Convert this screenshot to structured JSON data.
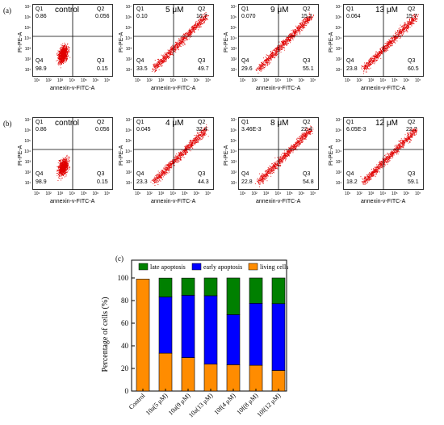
{
  "row_labels": [
    "(a)",
    "(b)",
    "(c)"
  ],
  "flow": {
    "x_axis_label": "annexin-v-FITC-A",
    "y_axis_label": "PI-PE-A",
    "x_ticks": [
      "10¹",
      "10²",
      "10³",
      "10⁴",
      "10⁵",
      "10⁶",
      "10⁷"
    ],
    "y_ticks": [
      "10⁷",
      "10⁶",
      "10⁵",
      "10⁴",
      "10³",
      "10²",
      "10¹"
    ],
    "quadrant_names": [
      "Q1",
      "Q2",
      "Q4",
      "Q3"
    ],
    "rows": [
      [
        {
          "condition": "control",
          "q1": "0.86",
          "q2": "0.056",
          "q4": "98.9",
          "q3": "0.15"
        },
        {
          "condition": "5 μM",
          "q1": "0.10",
          "q2": "16.7",
          "q4": "33.5",
          "q3": "49.7"
        },
        {
          "condition": "9 μM",
          "q1": "0.070",
          "q2": "15.2",
          "q4": "29.6",
          "q3": "55.1"
        },
        {
          "condition": "13 μM",
          "q1": "0.064",
          "q2": "15.7",
          "q4": "23.8",
          "q3": "60.5"
        }
      ],
      [
        {
          "condition": "control",
          "q1": "0.86",
          "q2": "0.056",
          "q4": "98.9",
          "q3": "0.15"
        },
        {
          "condition": "4 μM",
          "q1": "0.045",
          "q2": "32.4",
          "q4": "23.3",
          "q3": "44.3"
        },
        {
          "condition": "8 μM",
          "q1": "3.46E-3",
          "q2": "22.4",
          "q4": "22.8",
          "q3": "54.8"
        },
        {
          "condition": "12 μM",
          "q1": "6.05E-3",
          "q2": "22.7",
          "q4": "18.2",
          "q3": "59.1"
        }
      ]
    ]
  },
  "chart_data": {
    "type": "bar",
    "stacked": true,
    "ylabel": "Percentage of cells (%)",
    "ylim": [
      0,
      100
    ],
    "yticks": [
      0,
      20,
      40,
      60,
      80,
      100
    ],
    "categories": [
      "Control",
      "10a(5 μM)",
      "10a(9 μM)",
      "10a(13 μM)",
      "10f(4 μM)",
      "10f(8 μM)",
      "10f(12 μM)"
    ],
    "legend_position": "top",
    "series": [
      {
        "name": "living cells",
        "color": "#ff8c00",
        "values": [
          99,
          33.5,
          29.6,
          23.8,
          23.3,
          22.8,
          18.2
        ]
      },
      {
        "name": "early apoptosis",
        "color": "#0000ff",
        "values": [
          0,
          49.7,
          55.1,
          60.5,
          44.3,
          54.8,
          59.1
        ]
      },
      {
        "name": "late apoptosis",
        "color": "#008000",
        "values": [
          0,
          16.7,
          15.2,
          15.7,
          32.4,
          22.4,
          22.7
        ]
      }
    ],
    "legend_order": [
      "late apoptosis",
      "early apoptosis",
      "living cells"
    ]
  }
}
